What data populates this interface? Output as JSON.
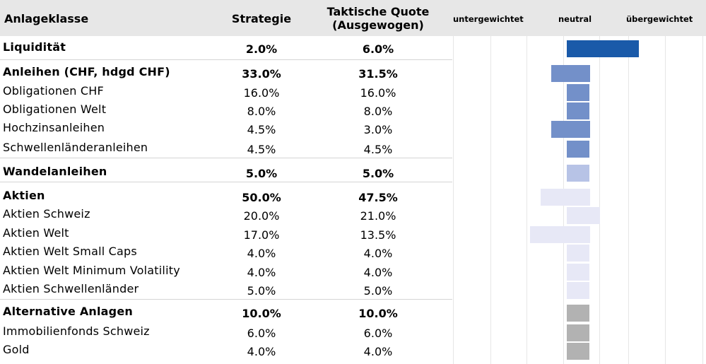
{
  "header": {
    "asset_class": "Anlageklasse",
    "strategy": "Strategie",
    "tactical_line1": "Taktische Quote",
    "tactical_line2": "(Ausgewogen)",
    "scale_under": "untergewichtet",
    "scale_neutral": "neutral",
    "scale_over": "übergewichtet"
  },
  "chart_data": {
    "type": "bar",
    "orientation": "horizontal-diverging",
    "axis_labels": [
      "untergewichtet",
      "neutral",
      "übergewichtet"
    ],
    "rows": [
      {
        "name": "Liquidität",
        "strategy": "2.0%",
        "tactical": "6.0%",
        "strategy_value": 2.0,
        "tactical_value": 6.0,
        "bold": true,
        "color": "#1a5aa9"
      },
      {
        "name": "Anleihen (CHF, hdgd CHF)",
        "strategy": "33.0%",
        "tactical": "31.5%",
        "strategy_value": 33.0,
        "tactical_value": 31.5,
        "bold": true,
        "color": "#7390c9"
      },
      {
        "name": "Obligationen CHF",
        "strategy": "16.0%",
        "tactical": "16.0%",
        "strategy_value": 16.0,
        "tactical_value": 16.0,
        "bold": false,
        "color": "#7390c9"
      },
      {
        "name": "Obligationen Welt",
        "strategy": "8.0%",
        "tactical": "8.0%",
        "strategy_value": 8.0,
        "tactical_value": 8.0,
        "bold": false,
        "color": "#7390c9"
      },
      {
        "name": "Hochzinsanleihen",
        "strategy": "4.5%",
        "tactical": "3.0%",
        "strategy_value": 4.5,
        "tactical_value": 3.0,
        "bold": false,
        "color": "#7390c9"
      },
      {
        "name": "Schwellenländeranleihen",
        "strategy": "4.5%",
        "tactical": "4.5%",
        "strategy_value": 4.5,
        "tactical_value": 4.5,
        "bold": false,
        "color": "#7390c9"
      },
      {
        "name": "Wandelanleihen",
        "strategy": "5.0%",
        "tactical": "5.0%",
        "strategy_value": 5.0,
        "tactical_value": 5.0,
        "bold": true,
        "color": "#b7c3e6"
      },
      {
        "name": "Aktien",
        "strategy": "50.0%",
        "tactical": "47.5%",
        "strategy_value": 50.0,
        "tactical_value": 47.5,
        "bold": true,
        "color": "#e7e8f6"
      },
      {
        "name": "Aktien Schweiz",
        "strategy": "20.0%",
        "tactical": "21.0%",
        "strategy_value": 20.0,
        "tactical_value": 21.0,
        "bold": false,
        "color": "#e7e8f6"
      },
      {
        "name": "Aktien Welt",
        "strategy": "17.0%",
        "tactical": "13.5%",
        "strategy_value": 17.0,
        "tactical_value": 13.5,
        "bold": false,
        "color": "#e7e8f6"
      },
      {
        "name": "Aktien Welt Small Caps",
        "strategy": "4.0%",
        "tactical": "4.0%",
        "strategy_value": 4.0,
        "tactical_value": 4.0,
        "bold": false,
        "color": "#e7e8f6"
      },
      {
        "name": "Aktien Welt Minimum Volatility",
        "strategy": "4.0%",
        "tactical": "4.0%",
        "strategy_value": 4.0,
        "tactical_value": 4.0,
        "bold": false,
        "color": "#e7e8f6"
      },
      {
        "name": "Aktien Schwellenländer",
        "strategy": "5.0%",
        "tactical": "5.0%",
        "strategy_value": 5.0,
        "tactical_value": 5.0,
        "bold": false,
        "color": "#e7e8f6"
      },
      {
        "name": "Alternative Anlagen",
        "strategy": "10.0%",
        "tactical": "10.0%",
        "strategy_value": 10.0,
        "tactical_value": 10.0,
        "bold": true,
        "color": "#b2b2b2"
      },
      {
        "name": "Immobilienfonds Schweiz",
        "strategy": "6.0%",
        "tactical": "6.0%",
        "strategy_value": 6.0,
        "tactical_value": 6.0,
        "bold": false,
        "color": "#b2b2b2"
      },
      {
        "name": "Gold",
        "strategy": "4.0%",
        "tactical": "4.0%",
        "strategy_value": 4.0,
        "tactical_value": 4.0,
        "bold": false,
        "color": "#b2b2b2"
      }
    ]
  }
}
